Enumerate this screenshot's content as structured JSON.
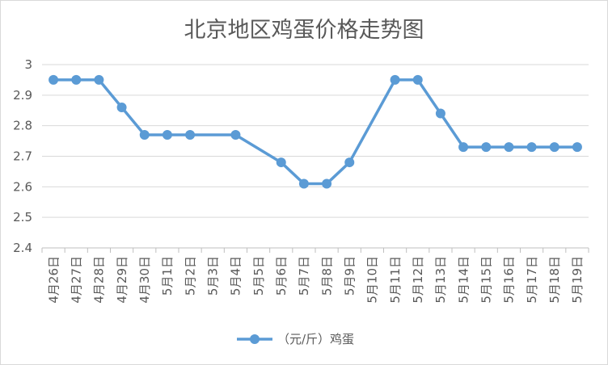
{
  "chart_data": {
    "type": "line",
    "title": "北京地区鸡蛋价格走势图",
    "xlabel": "",
    "ylabel": "",
    "categories": [
      "4月26日",
      "4月27日",
      "4月28日",
      "4月29日",
      "4月30日",
      "5月1日",
      "5月2日",
      "5月3日",
      "5月4日",
      "5月5日",
      "5月6日",
      "5月7日",
      "5月8日",
      "5月9日",
      "5月10日",
      "5月11日",
      "5月12日",
      "5月13日",
      "5月14日",
      "5月15日",
      "5月16日",
      "5月17日",
      "5月18日",
      "5月19日"
    ],
    "series": [
      {
        "name": "（元/斤）鸡蛋",
        "color": "#5B9BD5",
        "values": [
          2.95,
          2.95,
          2.95,
          2.86,
          2.77,
          2.77,
          2.77,
          null,
          2.77,
          null,
          2.68,
          2.61,
          2.61,
          2.68,
          null,
          2.95,
          2.95,
          2.84,
          2.73,
          2.73,
          2.73,
          2.73,
          2.73,
          2.73
        ]
      }
    ],
    "ylim": [
      2.4,
      3
    ],
    "y_ticks": [
      2.4,
      2.5,
      2.6,
      2.7,
      2.8,
      2.9,
      3
    ],
    "grid": "horizontal",
    "legend": "bottom",
    "colors": {
      "text": "#595959",
      "gridline": "#D9D9D9",
      "axis": "#BFBFBF",
      "border": "#D9D9D9"
    }
  }
}
